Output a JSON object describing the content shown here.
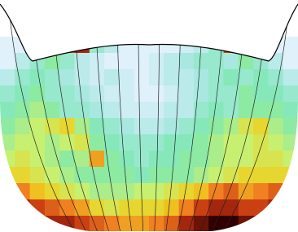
{
  "chart_data": {
    "type": "heatmap",
    "zlim": [
      0,
      1
    ],
    "colormap": [
      "#ffffff",
      "#d8eefa",
      "#a8e8e0",
      "#7de8b0",
      "#c8f070",
      "#f0d020",
      "#f08020",
      "#c03010",
      "#300000"
    ],
    "values": [
      [
        0.1,
        0.1,
        0.2,
        0.3,
        0.85,
        0.9,
        0.3,
        0.2,
        0.1,
        0.1,
        0.1,
        0.1,
        0.15,
        0.2,
        0.3,
        0.85,
        0.3,
        0.2,
        0.1,
        0.1
      ],
      [
        0.1,
        0.2,
        0.3,
        0.4,
        0.3,
        0.2,
        0.15,
        0.1,
        0.1,
        0.1,
        0.15,
        0.2,
        0.25,
        0.3,
        0.3,
        0.25,
        0.4,
        0.3,
        0.2,
        0.1
      ],
      [
        0.2,
        0.3,
        0.35,
        0.3,
        0.25,
        0.2,
        0.15,
        0.2,
        0.15,
        0.1,
        0.15,
        0.2,
        0.2,
        0.25,
        0.3,
        0.35,
        0.3,
        0.35,
        0.3,
        0.2
      ],
      [
        0.3,
        0.35,
        0.4,
        0.3,
        0.3,
        0.25,
        0.2,
        0.15,
        0.15,
        0.1,
        0.1,
        0.15,
        0.2,
        0.25,
        0.3,
        0.3,
        0.4,
        0.35,
        0.35,
        0.3
      ],
      [
        0.35,
        0.4,
        0.45,
        0.4,
        0.3,
        0.3,
        0.25,
        0.2,
        0.15,
        0.15,
        0.15,
        0.2,
        0.2,
        0.3,
        0.35,
        0.3,
        0.4,
        0.4,
        0.4,
        0.35
      ],
      [
        0.4,
        0.45,
        0.5,
        0.55,
        0.6,
        0.45,
        0.35,
        0.3,
        0.25,
        0.2,
        0.2,
        0.25,
        0.3,
        0.35,
        0.4,
        0.45,
        0.55,
        0.6,
        0.45,
        0.4
      ],
      [
        0.45,
        0.5,
        0.5,
        0.45,
        0.5,
        0.55,
        0.4,
        0.35,
        0.3,
        0.3,
        0.3,
        0.35,
        0.35,
        0.4,
        0.45,
        0.5,
        0.5,
        0.55,
        0.5,
        0.45
      ],
      [
        0.5,
        0.55,
        0.5,
        0.45,
        0.4,
        0.45,
        0.7,
        0.4,
        0.35,
        0.3,
        0.35,
        0.35,
        0.4,
        0.4,
        0.45,
        0.5,
        0.5,
        0.55,
        0.55,
        0.5
      ],
      [
        0.6,
        0.6,
        0.55,
        0.5,
        0.45,
        0.4,
        0.4,
        0.4,
        0.4,
        0.35,
        0.4,
        0.4,
        0.4,
        0.45,
        0.5,
        0.55,
        0.6,
        0.6,
        0.6,
        0.6
      ],
      [
        0.8,
        0.75,
        0.65,
        0.6,
        0.55,
        0.5,
        0.45,
        0.45,
        0.45,
        0.5,
        0.5,
        0.55,
        0.6,
        0.65,
        0.75,
        0.8,
        0.7,
        0.75,
        0.8,
        0.8
      ],
      [
        0.9,
        0.9,
        0.85,
        0.8,
        0.75,
        0.7,
        0.6,
        0.55,
        0.6,
        0.6,
        0.6,
        0.65,
        0.75,
        0.85,
        0.9,
        0.9,
        0.85,
        0.85,
        0.9,
        0.9
      ],
      [
        0.95,
        0.95,
        0.95,
        0.9,
        0.9,
        0.85,
        0.8,
        0.75,
        0.7,
        0.7,
        0.75,
        0.8,
        0.9,
        0.95,
        1,
        1,
        0.95,
        0.95,
        0.95,
        0.95
      ]
    ]
  }
}
